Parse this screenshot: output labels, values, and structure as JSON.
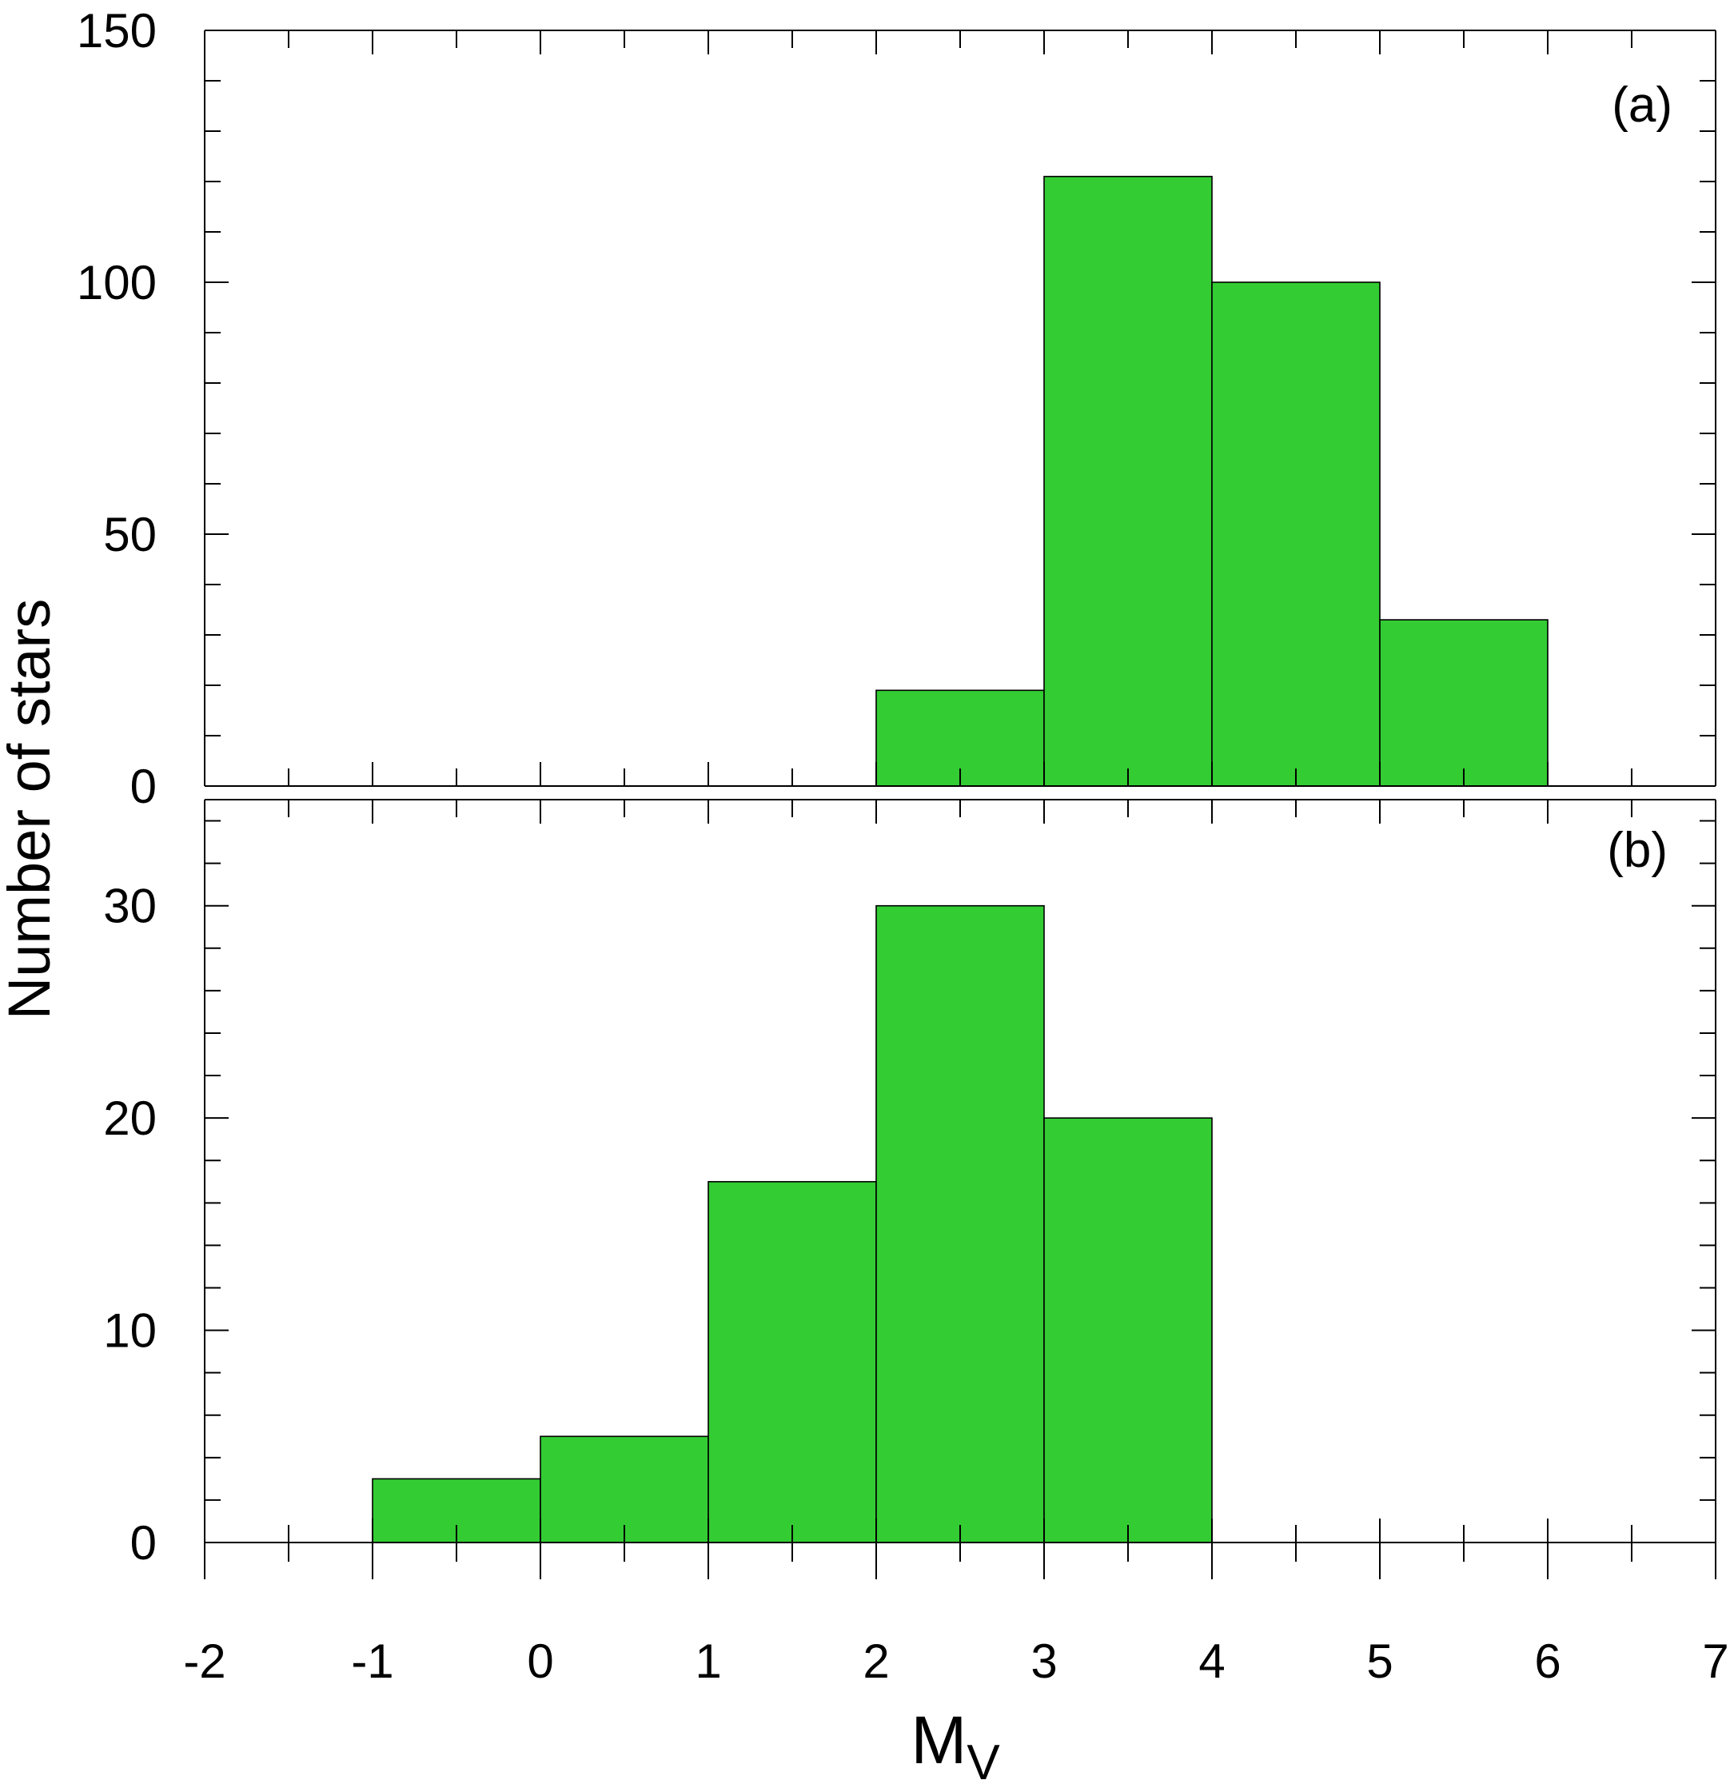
{
  "chart_data": [
    {
      "type": "bar",
      "panel_label": "(a)",
      "bin_edges": [
        2,
        3,
        4,
        5,
        6
      ],
      "values": [
        19,
        121,
        100,
        33
      ],
      "xlim": [
        -2,
        7
      ],
      "ylim": [
        0,
        150
      ],
      "yticks": [
        "0",
        "50",
        "100",
        "150"
      ],
      "fill_color": "#33cc33"
    },
    {
      "type": "bar",
      "panel_label": "(b)",
      "bin_edges": [
        -1,
        0,
        1,
        2,
        3,
        4
      ],
      "values": [
        3,
        5,
        17,
        30,
        20
      ],
      "xlim": [
        -2,
        7
      ],
      "ylim": [
        0,
        35
      ],
      "yticks": [
        "0",
        "10",
        "20",
        "30"
      ],
      "fill_color": "#33cc33"
    }
  ],
  "axes": {
    "ylabel": "Number of stars",
    "xlabel_main": "M",
    "xlabel_sub": "V",
    "xticks": [
      "-2",
      "-1",
      "0",
      "1",
      "2",
      "3",
      "4",
      "5",
      "6",
      "7"
    ]
  },
  "colors": {
    "bar_fill": "#33cc33",
    "axis": "#000000",
    "background": "#ffffff"
  }
}
